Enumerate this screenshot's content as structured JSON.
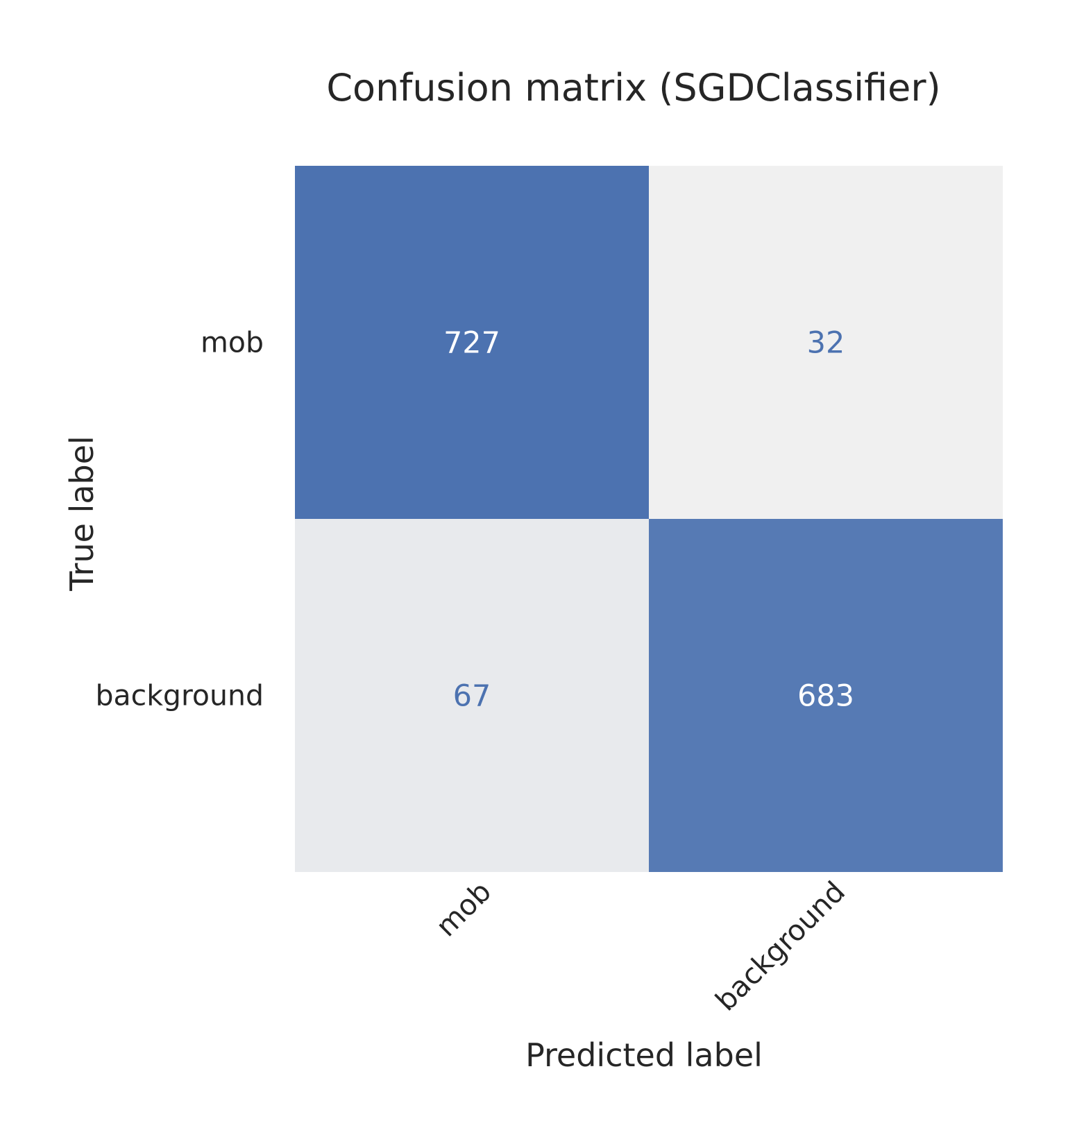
{
  "chart_data": {
    "type": "heatmap",
    "title": "Confusion matrix (SGDClassifier)",
    "xlabel": "Predicted label",
    "ylabel": "True label",
    "x_categories": [
      "mob",
      "background"
    ],
    "y_categories": [
      "mob",
      "background"
    ],
    "values": [
      [
        727,
        32
      ],
      [
        67,
        683
      ]
    ],
    "grid": false,
    "colorbar": false,
    "colormap": {
      "low": "#f0f0f0",
      "high": "#4c72b0",
      "text_on_low": "#4c72b0",
      "text_on_high": "#ffffff"
    }
  }
}
